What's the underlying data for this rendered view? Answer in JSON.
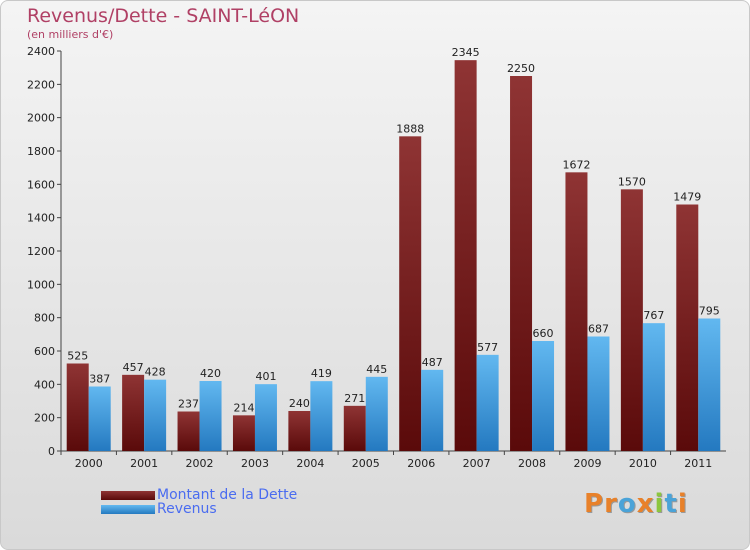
{
  "header": {
    "title": "Revenus/Dette - SAINT-LéON",
    "subtitle": "(en milliers d'€)"
  },
  "legend": {
    "items": [
      {
        "label": "Montant de la Dette",
        "color": "#7a1f1f"
      },
      {
        "label": "Revenus",
        "color": "#3a9ee0"
      }
    ]
  },
  "logo": {
    "letters": [
      {
        "ch": "P",
        "color": "#e8812a"
      },
      {
        "ch": "r",
        "color": "#e8812a"
      },
      {
        "ch": "o",
        "color": "#4aa3d8"
      },
      {
        "ch": "x",
        "color": "#e8812a"
      },
      {
        "ch": "i",
        "color": "#8cc63f"
      },
      {
        "ch": "t",
        "color": "#4aa3d8"
      },
      {
        "ch": "i",
        "color": "#e8812a"
      }
    ]
  },
  "chart_data": {
    "type": "bar",
    "categories": [
      "2000",
      "2001",
      "2002",
      "2003",
      "2004",
      "2005",
      "2006",
      "2007",
      "2008",
      "2009",
      "2010",
      "2011"
    ],
    "series": [
      {
        "name": "Montant de la Dette",
        "color": "#7a1f1f",
        "values": [
          525,
          457,
          237,
          214,
          240,
          271,
          1888,
          2345,
          2250,
          1672,
          1570,
          1479
        ]
      },
      {
        "name": "Revenus",
        "color": "#3a9ee0",
        "values": [
          387,
          428,
          420,
          401,
          419,
          445,
          487,
          577,
          660,
          687,
          767,
          795
        ]
      }
    ],
    "ylim": [
      0,
      2400
    ],
    "yticks": [
      0,
      200,
      400,
      600,
      800,
      1000,
      1200,
      1400,
      1600,
      1800,
      2000,
      2200,
      2400
    ],
    "grid": false
  }
}
